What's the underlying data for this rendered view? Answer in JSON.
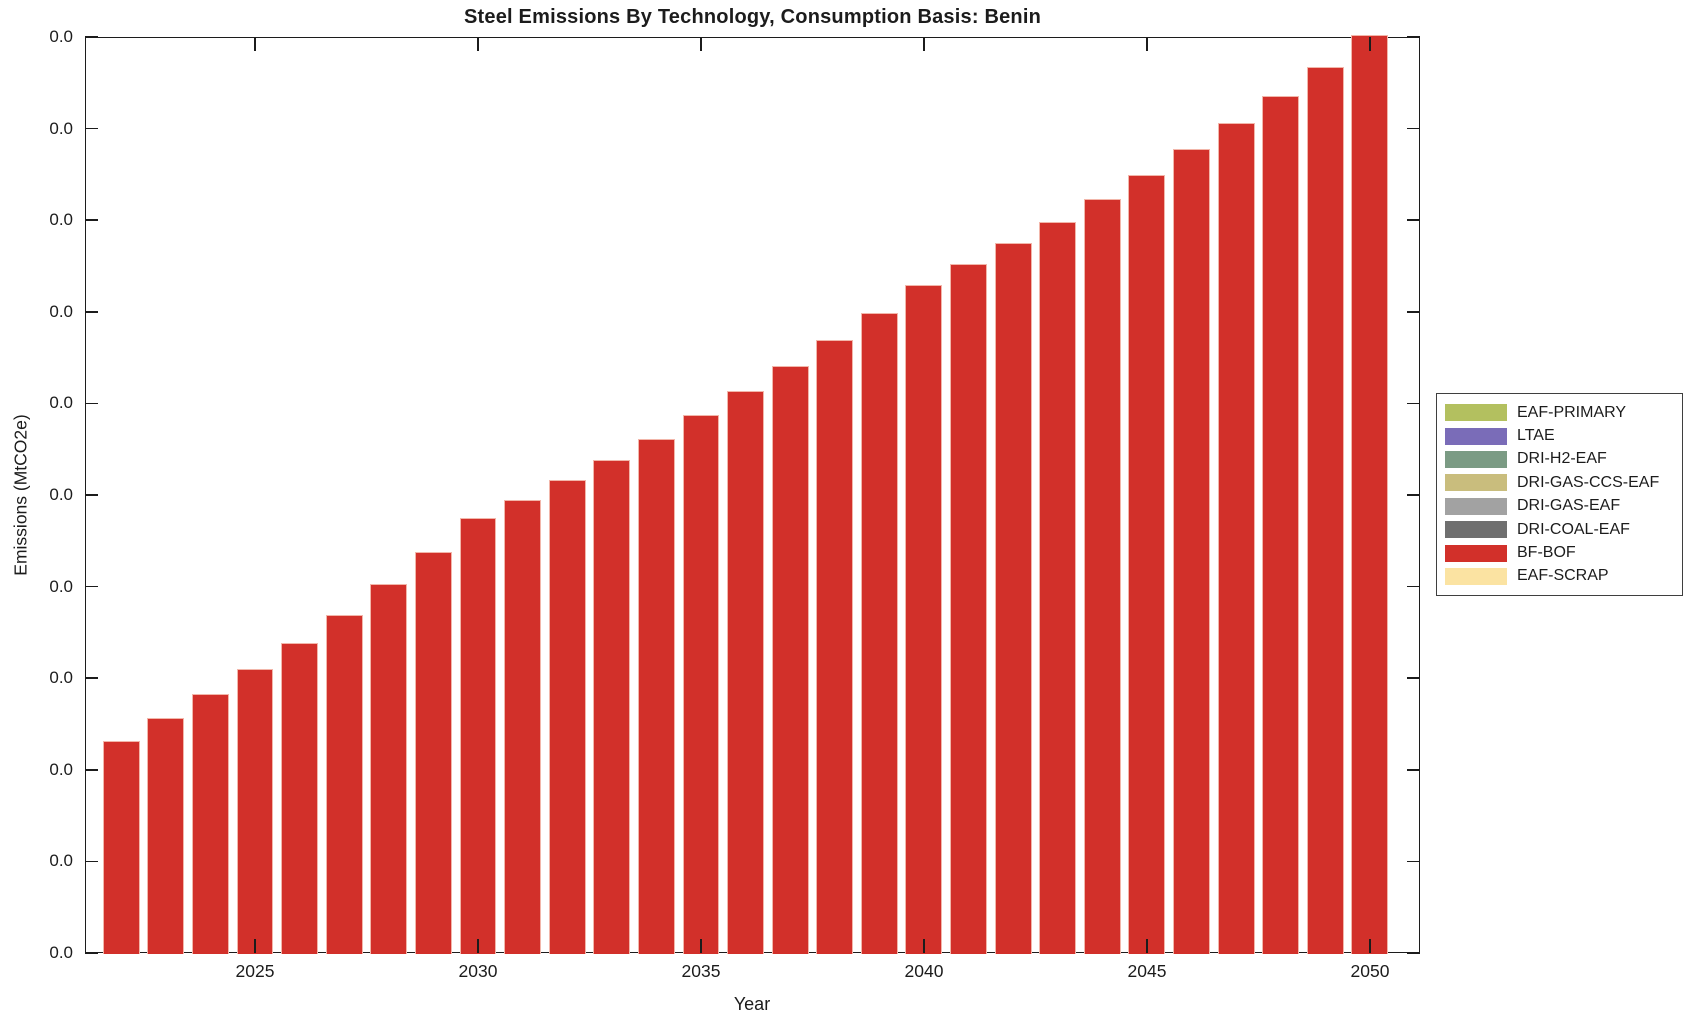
{
  "title": "Steel Emissions By Technology, Consumption Basis: Benin",
  "axes": {
    "xlabel": "Year",
    "ylabel": "Emissions (MtCO2e)",
    "x_tick_labels": [
      "2025",
      "2030",
      "2035",
      "2040",
      "2045",
      "2050"
    ],
    "y_tick_labels": [
      "0.0",
      "0.0",
      "0.0",
      "0.0",
      "0.0",
      "0.0",
      "0.0",
      "0.0",
      "0.0",
      "0.0",
      "0.0"
    ]
  },
  "legend": {
    "position": "center right",
    "items": [
      {
        "label": "EAF-PRIMARY",
        "color": "#b3c05f"
      },
      {
        "label": "LTAE",
        "color": "#7a6cb8"
      },
      {
        "label": "DRI-H2-EAF",
        "color": "#7b9b84"
      },
      {
        "label": "DRI-GAS-CCS-EAF",
        "color": "#c9bd7d"
      },
      {
        "label": "DRI-GAS-EAF",
        "color": "#a2a2a2"
      },
      {
        "label": "DRI-COAL-EAF",
        "color": "#6f6f6f"
      },
      {
        "label": "BF-BOF",
        "color": "#d2302a"
      },
      {
        "label": "EAF-SCRAP",
        "color": "#fbe3a2"
      }
    ]
  },
  "chart_data": {
    "type": "bar",
    "stacked": true,
    "title": "Steel Emissions By Technology, Consumption Basis: Benin",
    "xlabel": "Year",
    "ylabel": "Emissions (MtCO2e)",
    "categories": [
      2022,
      2023,
      2024,
      2025,
      2026,
      2027,
      2028,
      2029,
      2030,
      2031,
      2032,
      2033,
      2034,
      2035,
      2036,
      2037,
      2038,
      2039,
      2040,
      2041,
      2042,
      2043,
      2044,
      2045,
      2046,
      2047,
      2048,
      2049,
      2050
    ],
    "xticks": [
      2025,
      2030,
      2035,
      2040,
      2045,
      2050
    ],
    "ytick_display_note": "All 11 evenly spaced y-axis tick labels render as 0.0; absolute emissions are near zero in MtCO2e, so bar values are recorded as fractions of the full y-axis span.",
    "grid": false,
    "legend_position": "center right",
    "series": [
      {
        "name": "BF-BOF",
        "color": "#d2302a",
        "values_fraction_of_yaxis": [
          0.233,
          0.258,
          0.284,
          0.311,
          0.34,
          0.37,
          0.404,
          0.439,
          0.476,
          0.496,
          0.517,
          0.539,
          0.562,
          0.588,
          0.615,
          0.642,
          0.67,
          0.7,
          0.73,
          0.753,
          0.776,
          0.799,
          0.824,
          0.85,
          0.879,
          0.907,
          0.937,
          0.968,
          1.003
        ]
      }
    ],
    "series_with_no_visible_bars": [
      "EAF-PRIMARY",
      "LTAE",
      "DRI-H2-EAF",
      "DRI-GAS-CCS-EAF",
      "DRI-GAS-EAF",
      "DRI-COAL-EAF",
      "EAF-SCRAP"
    ]
  },
  "style": {
    "bar_fill": "#d2302a",
    "bar_edge": "#f2b6aa",
    "frame_color": "#1c1c1c",
    "text_color": "#1c1c1c",
    "background": "#ffffff"
  }
}
